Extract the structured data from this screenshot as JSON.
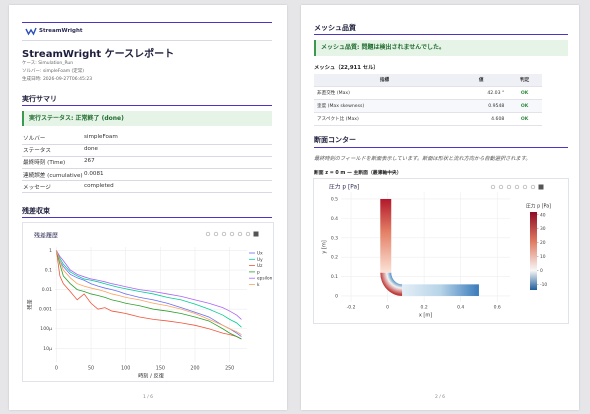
{
  "pages": [
    {
      "logo": "StreamWright",
      "title": "StreamWright ケースレポート",
      "meta": [
        "ケース: Simulation_Run",
        "ソルバー: simpleFoam (定常)",
        "生成日時: 2026-09-27T06:45:23"
      ],
      "sections": [
        {
          "heading": "実行サマリ",
          "status": "実行ステータス: 正常終了 (done)",
          "rows": [
            [
              "ソルバー",
              "simpleFoam"
            ],
            [
              "ステータス",
              "done"
            ],
            [
              "最終時刻 (Time)",
              "267"
            ],
            [
              "連続誤差 (cumulative)",
              "0.0081"
            ],
            [
              "メッセージ",
              "completed"
            ]
          ]
        },
        {
          "heading": "残差収束"
        }
      ],
      "page_number": "1 / 6"
    },
    {
      "sections": [
        {
          "heading": "メッシュ品質",
          "status": "メッシュ品質: 問題は検出されませんでした。",
          "subheading": "メッシュ（22,911 セル）",
          "table": {
            "header": [
              "指標",
              "値",
              "判定"
            ],
            "rows": [
              [
                "非直交性 (Max)",
                "42.03 °",
                "OK"
              ],
              [
                "歪度 (Max skewness)",
                "0.9548",
                "OK"
              ],
              [
                "アスペクト比 (Max)",
                "4.608",
                "OK"
              ]
            ]
          }
        },
        {
          "heading": "断面コンター",
          "note": "最終時刻のフィールドを断面表示しています。断面は形状と流れ方向から自動選択されます。",
          "subheading": "断面 z = 0 m — 主断面（最薄軸中央）"
        }
      ],
      "page_number": "2 / 6"
    }
  ],
  "chart_data": [
    {
      "type": "line",
      "title": "残差履歴",
      "xlabel": "時刻 / 反復",
      "ylabel": "残差",
      "log_y": true,
      "grid": true,
      "legend": "right",
      "x": [
        0,
        5,
        10,
        20,
        30,
        40,
        50,
        60,
        70,
        80,
        90,
        100,
        120,
        140,
        160,
        180,
        200,
        220,
        240,
        250,
        260,
        267
      ],
      "xlim": [
        -2,
        275
      ],
      "xticks": [
        0,
        50,
        100,
        150,
        200,
        250
      ],
      "ylim": [
        2e-06,
        1.5
      ],
      "yticks": [
        1,
        0.1,
        0.01,
        0.001,
        {
          "value": 0.0001,
          "label": "100μ"
        },
        {
          "value": 1e-05,
          "label": "10μ"
        }
      ],
      "series": [
        {
          "name": "Ux",
          "color": "#636efa",
          "values": [
            1,
            0.3,
            0.15,
            0.06,
            0.04,
            0.03,
            0.02,
            0.015,
            0.012,
            0.01,
            0.008,
            0.006,
            0.004,
            0.003,
            0.002,
            0.0012,
            0.0007,
            0.0004,
            0.00015,
            0.0001,
            6e-05,
            4e-05
          ]
        },
        {
          "name": "Uy",
          "color": "#00cc96",
          "values": [
            1,
            0.4,
            0.2,
            0.08,
            0.05,
            0.035,
            0.03,
            0.025,
            0.02,
            0.016,
            0.013,
            0.011,
            0.008,
            0.006,
            0.004,
            0.003,
            0.0018,
            0.001,
            0.0005,
            0.0003,
            0.0002,
            0.00012
          ]
        },
        {
          "name": "Uz",
          "color": "#ef553b",
          "values": [
            1,
            0.05,
            0.02,
            0.008,
            0.003,
            0.006,
            0.002,
            0.001,
            0.0012,
            0.0008,
            0.0007,
            0.0006,
            0.0004,
            0.0003,
            0.00025,
            0.0002,
            0.00015,
            0.0001,
            6e-05,
            5e-05,
            4e-05,
            3e-05
          ]
        },
        {
          "name": "p",
          "color": "#2ca02c",
          "values": [
            1,
            0.2,
            0.05,
            0.02,
            0.01,
            0.008,
            0.006,
            0.005,
            0.004,
            0.003,
            0.0025,
            0.002,
            0.0015,
            0.001,
            0.0008,
            0.0006,
            0.0004,
            0.00025,
            0.0001,
            6e-05,
            4e-05,
            3e-05
          ]
        },
        {
          "name": "epsilon",
          "color": "#ab63fa",
          "values": [
            1,
            0.5,
            0.3,
            0.1,
            0.06,
            0.045,
            0.035,
            0.03,
            0.025,
            0.02,
            0.017,
            0.014,
            0.01,
            0.008,
            0.006,
            0.0045,
            0.003,
            0.002,
            0.0012,
            0.0008,
            0.0005,
            0.0003
          ]
        },
        {
          "name": "k",
          "color": "#ffa15a",
          "values": [
            1,
            0.3,
            0.1,
            0.04,
            0.02,
            0.015,
            0.012,
            0.01,
            0.008,
            0.006,
            0.005,
            0.004,
            0.003,
            0.002,
            0.0015,
            0.001,
            0.0006,
            0.0003,
            0.00015,
            0.0001,
            7e-05,
            5e-05
          ]
        }
      ]
    },
    {
      "type": "contour",
      "title": "圧力 p [Pa]",
      "xlabel": "x [m]",
      "ylabel": "y [m]",
      "grid": true,
      "xlim": [
        -0.255,
        0.67
      ],
      "ylim": [
        -0.031,
        0.536
      ],
      "xticks": [
        -0.2,
        0,
        0.2,
        0.4,
        0.6
      ],
      "yticks": [
        0,
        0.1,
        0.2,
        0.3,
        0.4,
        0.5
      ],
      "colorbar_title": "圧力 p [Pa]",
      "clim": [
        -14,
        42
      ],
      "cticks": [
        -10,
        0,
        10,
        20,
        30,
        40
      ]
    }
  ]
}
